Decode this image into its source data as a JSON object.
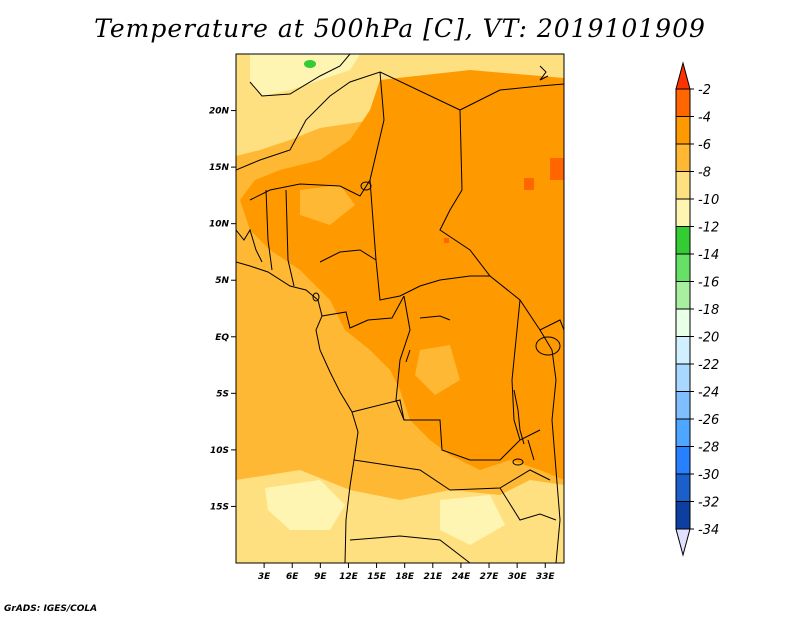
{
  "title": "Temperature at 500hPa [C], VT: 2019101909",
  "credit": "GrADS: IGES/COLA",
  "axes": {
    "lat_labels": [
      "20N",
      "15N",
      "10N",
      "5N",
      "EQ",
      "5S",
      "10S",
      "15S"
    ],
    "lat_values": [
      20,
      15,
      10,
      5,
      0,
      -5,
      -10,
      -15
    ],
    "lon_labels": [
      "3E",
      "6E",
      "9E",
      "12E",
      "15E",
      "18E",
      "21E",
      "24E",
      "27E",
      "30E",
      "33E"
    ],
    "lon_values": [
      3,
      6,
      9,
      12,
      15,
      18,
      21,
      24,
      27,
      30,
      33
    ],
    "lon_range": [
      0,
      35
    ],
    "lat_range": [
      -20,
      25
    ]
  },
  "colorbar": {
    "labels": [
      "-2",
      "-4",
      "-6",
      "-8",
      "-10",
      "-12",
      "-14",
      "-16",
      "-18",
      "-20",
      "-22",
      "-24",
      "-26",
      "-28",
      "-30",
      "-32",
      "-34"
    ],
    "colors": [
      "#ff6600",
      "#ff9900",
      "#ffb833",
      "#ffe080",
      "#fff5b3",
      "#33cc33",
      "#66e066",
      "#a8f0a0",
      "#e8ffe8",
      "#d0f0ff",
      "#a8d8ff",
      "#7fbfff",
      "#4da6ff",
      "#2680ff",
      "#1a5fcc",
      "#0d3fa0",
      "#000066"
    ],
    "top_triangle_color": "#ff3300",
    "bottom_triangle_color": "#e0e0ff"
  },
  "field_colors": {
    "warm": "#ff9900",
    "mid": "#ffb833",
    "cool": "#ffe080",
    "pale": "#fff5b3",
    "hot": "#ff6600",
    "green": "#33cc33"
  }
}
